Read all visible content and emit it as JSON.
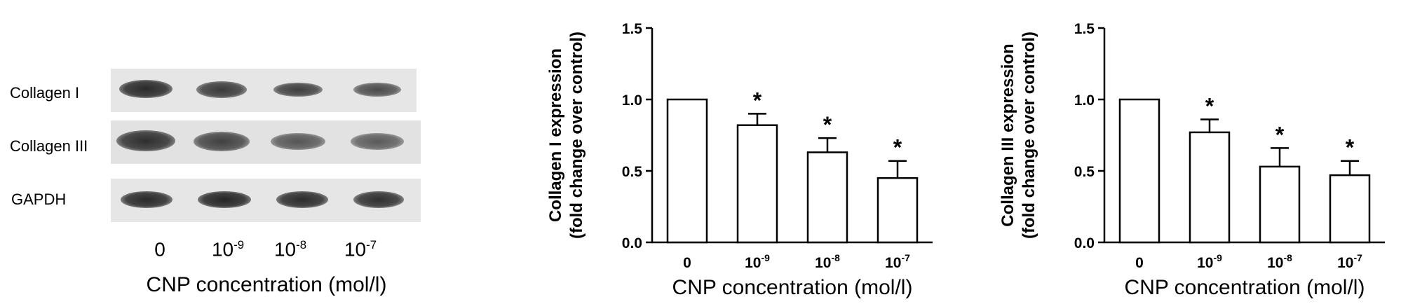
{
  "blot": {
    "row_labels": [
      "Collagen I",
      "Collagen III",
      "GAPDH"
    ],
    "lane_labels": [
      {
        "base": "0",
        "exp": ""
      },
      {
        "base": "10",
        "exp": "-9"
      },
      {
        "base": "10",
        "exp": "-8"
      },
      {
        "base": "10",
        "exp": "-7"
      }
    ],
    "xlabel": "CNP concentration (mol/l)"
  },
  "chart_data": [
    {
      "type": "bar",
      "categories": [
        {
          "base": "0",
          "exp": ""
        },
        {
          "base": "10",
          "exp": "-9"
        },
        {
          "base": "10",
          "exp": "-8"
        },
        {
          "base": "10",
          "exp": "-7"
        }
      ],
      "values": [
        1.0,
        0.82,
        0.63,
        0.45
      ],
      "errors": [
        0,
        0.08,
        0.1,
        0.12
      ],
      "significance": [
        "",
        "*",
        "*",
        "*"
      ],
      "ylabel": [
        "Collagen I expression",
        "(fold change over control)"
      ],
      "xlabel": "CNP concentration (mol/l)",
      "ylim": [
        0,
        1.5
      ],
      "yticks": [
        "0.0",
        "0.5",
        "1.0",
        "1.5"
      ]
    },
    {
      "type": "bar",
      "categories": [
        {
          "base": "0",
          "exp": ""
        },
        {
          "base": "10",
          "exp": "-9"
        },
        {
          "base": "10",
          "exp": "-8"
        },
        {
          "base": "10",
          "exp": "-7"
        }
      ],
      "values": [
        1.0,
        0.77,
        0.53,
        0.47
      ],
      "errors": [
        0,
        0.09,
        0.13,
        0.1
      ],
      "significance": [
        "",
        "*",
        "*",
        "*"
      ],
      "ylabel": [
        "Collagen III expression",
        "(fold change over control)"
      ],
      "xlabel": "CNP concentration (mol/l)",
      "ylim": [
        0,
        1.5
      ],
      "yticks": [
        "0.0",
        "0.5",
        "1.0",
        "1.5"
      ]
    }
  ]
}
